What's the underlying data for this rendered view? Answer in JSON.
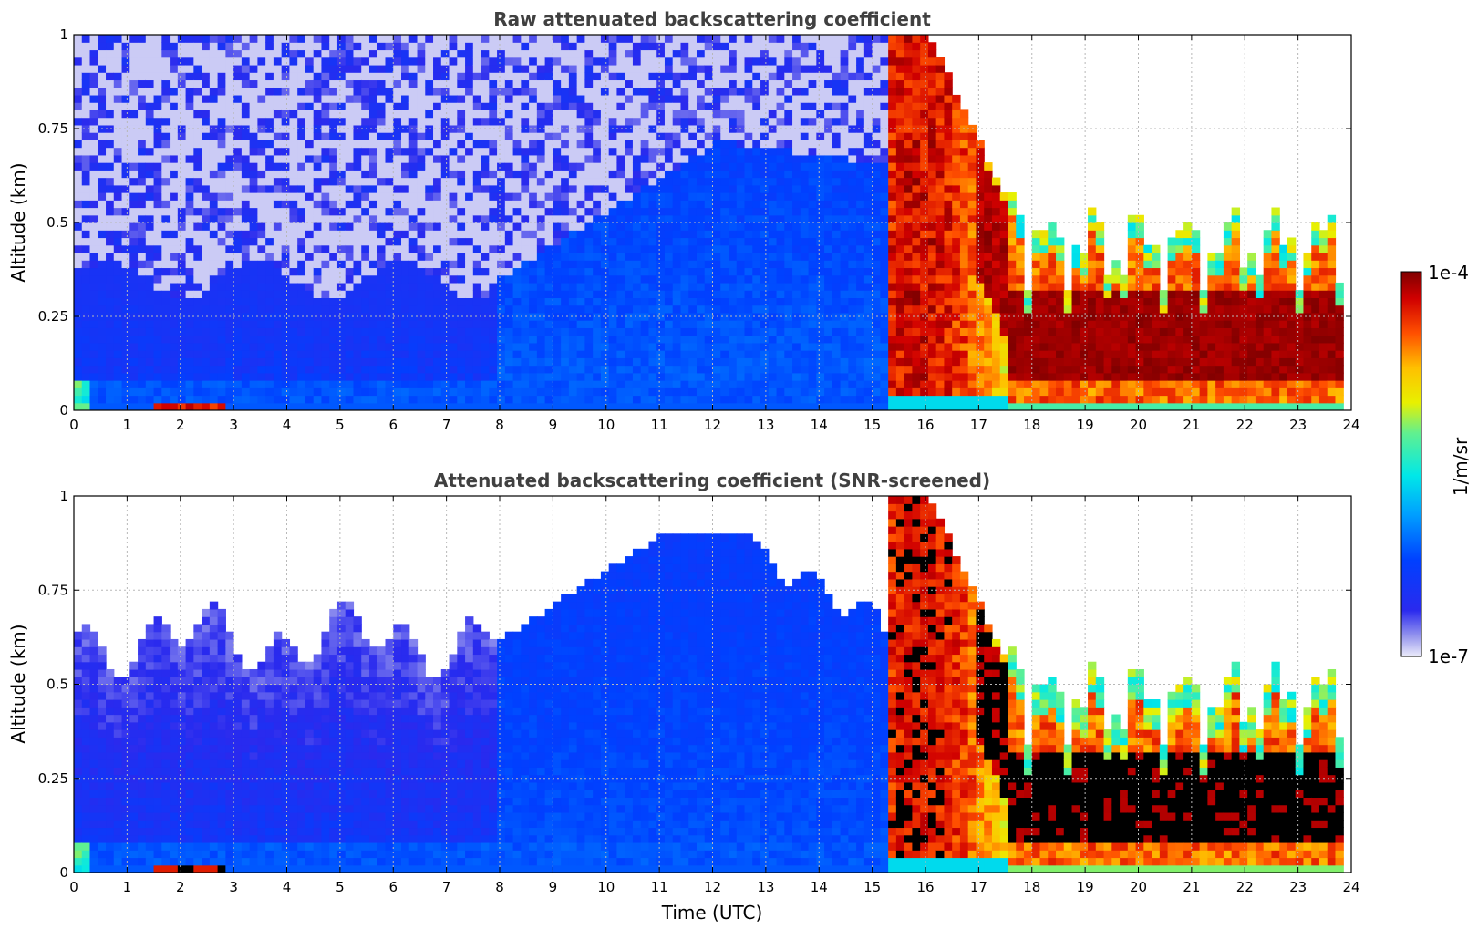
{
  "chart_data": [
    {
      "type": "heatmap",
      "title": "Raw attenuated backscattering coefficient",
      "xlabel": "",
      "ylabel": "Altitude (km)",
      "xlim": [
        0,
        24
      ],
      "ylim": [
        0,
        1
      ],
      "x_ticks": [
        "0",
        "1",
        "2",
        "3",
        "4",
        "5",
        "6",
        "7",
        "8",
        "9",
        "10",
        "11",
        "12",
        "13",
        "14",
        "15",
        "16",
        "17",
        "18",
        "19",
        "20",
        "21",
        "22",
        "23",
        "24"
      ],
      "y_ticks": [
        "0",
        "0.25",
        "0.5",
        "0.75",
        "1"
      ],
      "grid": true,
      "colormap": "jet",
      "scale": "log",
      "screened": false,
      "features": [
        {
          "x": [
            0,
            8
          ],
          "y": [
            0,
            1
          ],
          "level": "noise-dominated, scattered low values"
        },
        {
          "x": [
            8,
            15
          ],
          "y": [
            0,
            0.7
          ],
          "level": "moderate, blue"
        },
        {
          "x": [
            15.3,
            17.8
          ],
          "y": [
            0,
            1
          ],
          "level": "high, descending plumes"
        },
        {
          "x": [
            17.5,
            23.8
          ],
          "y": [
            0.05,
            0.35
          ],
          "level": "very high layer"
        }
      ]
    },
    {
      "type": "heatmap",
      "title": "Attenuated backscattering coefficient (SNR-screened)",
      "xlabel": "Time (UTC)",
      "ylabel": "Altitude (km)",
      "xlim": [
        0,
        24
      ],
      "ylim": [
        0,
        1
      ],
      "x_ticks": [
        "0",
        "1",
        "2",
        "3",
        "4",
        "5",
        "6",
        "7",
        "8",
        "9",
        "10",
        "11",
        "12",
        "13",
        "14",
        "15",
        "16",
        "17",
        "18",
        "19",
        "20",
        "21",
        "22",
        "23",
        "24"
      ],
      "y_ticks": [
        "0",
        "0.25",
        "0.5",
        "0.75",
        "1"
      ],
      "grid": true,
      "colormap": "jet",
      "scale": "log",
      "screened": true,
      "features": [
        {
          "x": [
            0,
            8
          ],
          "y": [
            0,
            0.65
          ],
          "level": "low, pale blue"
        },
        {
          "x": [
            8,
            15
          ],
          "y": [
            0,
            0.9
          ],
          "level": "moderate, blue dome"
        },
        {
          "x": [
            15.3,
            17.8
          ],
          "y": [
            0,
            1
          ],
          "level": "high, descending plumes"
        },
        {
          "x": [
            17.5,
            23.8
          ],
          "y": [
            0.05,
            0.55
          ],
          "level": "saturated layer (black core)"
        }
      ]
    }
  ],
  "colorbar": {
    "max_label": "1e-4",
    "min_label": "1e-7",
    "unit": "1/m/sr"
  }
}
